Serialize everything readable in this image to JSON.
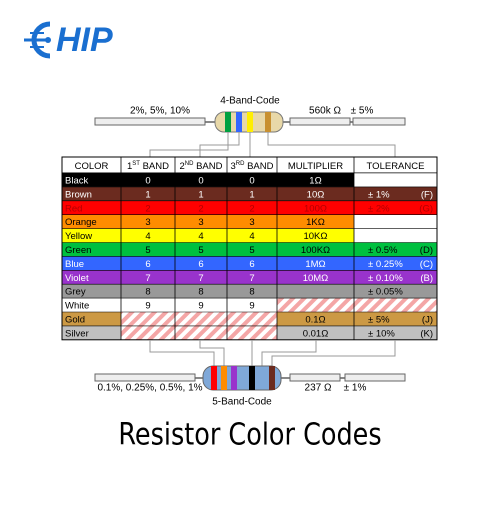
{
  "logo": {
    "text": "HIP"
  },
  "top": {
    "label": "4-Band-Code",
    "left_note": "2%, 5%, 10%",
    "value": "560k Ω",
    "tolerance": "± 5%"
  },
  "bottom": {
    "label": "5-Band-Code",
    "left_note": "0.1%, 0.25%, 0.5%, 1%",
    "value": "237 Ω",
    "tolerance": "± 1%"
  },
  "table": {
    "headers": [
      {
        "text": "COLOR"
      },
      {
        "num": "1",
        "sup": "ST",
        "text": " BAND"
      },
      {
        "num": "2",
        "sup": "ND",
        "text": " BAND"
      },
      {
        "num": "3",
        "sup": "RD",
        "text": " BAND"
      },
      {
        "text": "MULTIPLIER"
      },
      {
        "text": "TOLERANCE"
      }
    ],
    "rows": [
      {
        "name": "Black",
        "color": "#000000",
        "text_color": "#ffffff",
        "cells": [
          "0",
          "0",
          "0",
          "1Ω",
          null,
          null
        ]
      },
      {
        "name": "Brown",
        "color": "#6b2b1f",
        "text_color": "#ffffff",
        "cells": [
          "1",
          "1",
          "1",
          "10Ω",
          "± 1%",
          "(F)"
        ]
      },
      {
        "name": "Red",
        "color": "#ff0000",
        "text_color": "#b30000",
        "cells": [
          "2",
          "2",
          "2",
          "100Ω",
          "± 2%",
          "(G)"
        ]
      },
      {
        "name": "Orange",
        "color": "#ff8c00",
        "text_color": "#000000",
        "cells": [
          "3",
          "3",
          "3",
          "1KΩ",
          null,
          null
        ]
      },
      {
        "name": "Yellow",
        "color": "#ffff00",
        "text_color": "#000000",
        "cells": [
          "4",
          "4",
          "4",
          "10KΩ",
          null,
          null
        ]
      },
      {
        "name": "Green",
        "color": "#00c040",
        "text_color": "#000000",
        "cells": [
          "5",
          "5",
          "5",
          "100KΩ",
          "± 0.5%",
          "(D)"
        ]
      },
      {
        "name": "Blue",
        "color": "#3366ff",
        "text_color": "#ffffff",
        "cells": [
          "6",
          "6",
          "6",
          "1MΩ",
          "± 0.25%",
          "(C)"
        ]
      },
      {
        "name": "Violet",
        "color": "#9933cc",
        "text_color": "#ffffff",
        "cells": [
          "7",
          "7",
          "7",
          "10MΩ",
          "± 0.10%",
          "(B)"
        ]
      },
      {
        "name": "Grey",
        "color": "#999999",
        "text_color": "#000000",
        "cells": [
          "8",
          "8",
          "8",
          null,
          "± 0.05%",
          null
        ]
      },
      {
        "name": "White",
        "color": "#ffffff",
        "text_color": "#000000",
        "cells": [
          "9",
          "9",
          "9",
          null,
          null,
          null
        ],
        "hatched": [
          3,
          4
        ]
      },
      {
        "name": "Gold",
        "color": "#cc9944",
        "text_color": "#000000",
        "cells": [
          null,
          null,
          null,
          "0.1Ω",
          "± 5%",
          "(J)"
        ],
        "hatched": [
          0,
          1,
          2
        ]
      },
      {
        "name": "Silver",
        "color": "#c0c0c0",
        "text_color": "#000000",
        "cells": [
          null,
          null,
          null,
          "0.01Ω",
          "± 10%",
          "(K)"
        ],
        "hatched": [
          0,
          1,
          2
        ]
      }
    ]
  },
  "title": "Resistor Color Codes"
}
